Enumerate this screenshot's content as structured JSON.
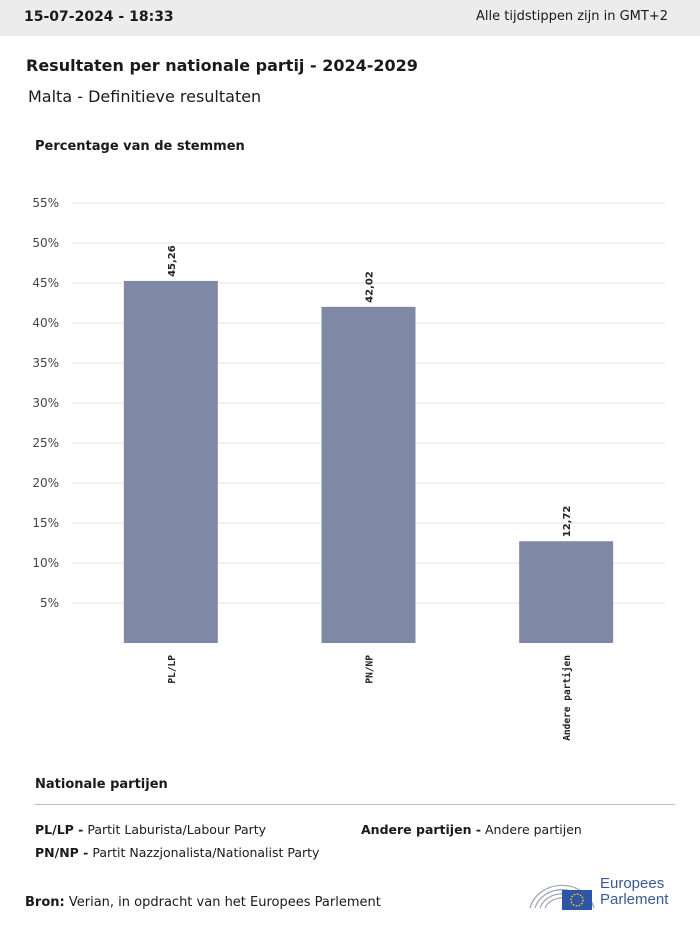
{
  "header": {
    "timestamp": "15-07-2024 - 18:33",
    "timezone_note": "Alle tijdstippen zijn in GMT+2"
  },
  "title": "Resultaten per nationale partij - 2024-2029",
  "subtitle": "Malta - Definitieve resultaten",
  "chart_data": {
    "type": "bar",
    "ylabel": "Percentage van de stemmen",
    "xlabel": "",
    "categories": [
      "PL/LP",
      "PN/NP",
      "Andere partijen"
    ],
    "values": [
      45.26,
      42.02,
      12.72
    ],
    "data_labels": [
      "45,26",
      "42,02",
      "12,72"
    ],
    "yticks": [
      "5%",
      "10%",
      "15%",
      "20%",
      "25%",
      "30%",
      "35%",
      "40%",
      "45%",
      "50%",
      "55%"
    ],
    "ylim": [
      0,
      55
    ],
    "grid": true,
    "bar_color": "#7f89a6"
  },
  "legend": {
    "title": "Nationale partijen",
    "items": [
      {
        "abbr": "PL/LP -",
        "name": "Partit Laburista/Labour Party"
      },
      {
        "abbr": "PN/NP -",
        "name": "Partit Nazzjonalista/Nationalist Party"
      },
      {
        "abbr": "Andere partijen -",
        "name": "Andere partijen"
      }
    ]
  },
  "source": {
    "label": "Bron:",
    "text": "Verian, in opdracht van het Europees Parlement"
  },
  "logo": {
    "line1": "Europees",
    "line2": "Parlement"
  }
}
